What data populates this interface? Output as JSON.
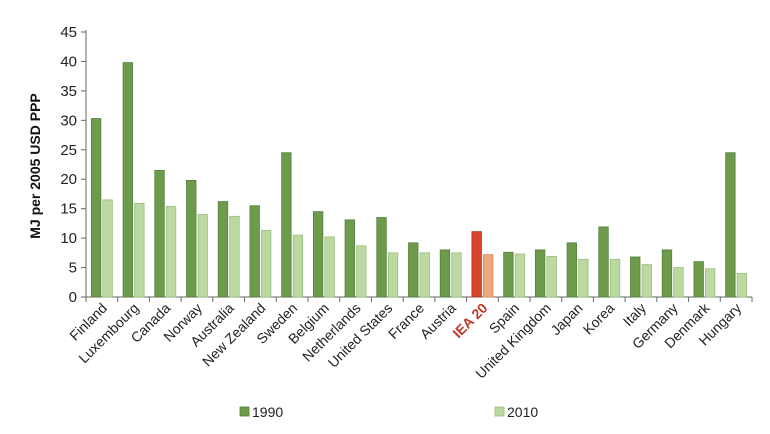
{
  "chart_data": {
    "type": "bar",
    "title": "",
    "xlabel": "",
    "ylabel": "MJ per 2005 USD PPP",
    "ylim": [
      0,
      45
    ],
    "yticks": [
      0,
      5,
      10,
      15,
      20,
      25,
      30,
      35,
      40,
      45
    ],
    "grid": false,
    "legend_position": "bottom",
    "highlight_category": "IEA 20",
    "categories": [
      "Finland",
      "Luxembourg",
      "Canada",
      "Norway",
      "Australia",
      "New Zealand",
      "Sweden",
      "Belgium",
      "Netherlands",
      "United States",
      "France",
      "Austria",
      "IEA 20",
      "Spain",
      "United Kingdom",
      "Japan",
      "Korea",
      "Italy",
      "Germany",
      "Denmark",
      "Hungary"
    ],
    "series": [
      {
        "name": "1990",
        "color": "#6e9a4b",
        "highlight_color": "#d9462b",
        "values": [
          30.3,
          39.8,
          21.5,
          19.8,
          16.2,
          15.5,
          24.5,
          14.5,
          13.1,
          13.5,
          9.2,
          8.0,
          11.1,
          7.6,
          8.0,
          9.2,
          11.9,
          6.8,
          8.0,
          6.0,
          24.5
        ]
      },
      {
        "name": "2010",
        "color": "#bcd9a2",
        "highlight_color": "#f0a878",
        "values": [
          16.5,
          15.9,
          15.4,
          14.0,
          13.7,
          11.3,
          10.5,
          10.2,
          8.7,
          7.5,
          7.5,
          7.5,
          7.2,
          7.3,
          6.9,
          6.4,
          6.4,
          5.5,
          5.0,
          4.8,
          4.0
        ]
      }
    ]
  }
}
